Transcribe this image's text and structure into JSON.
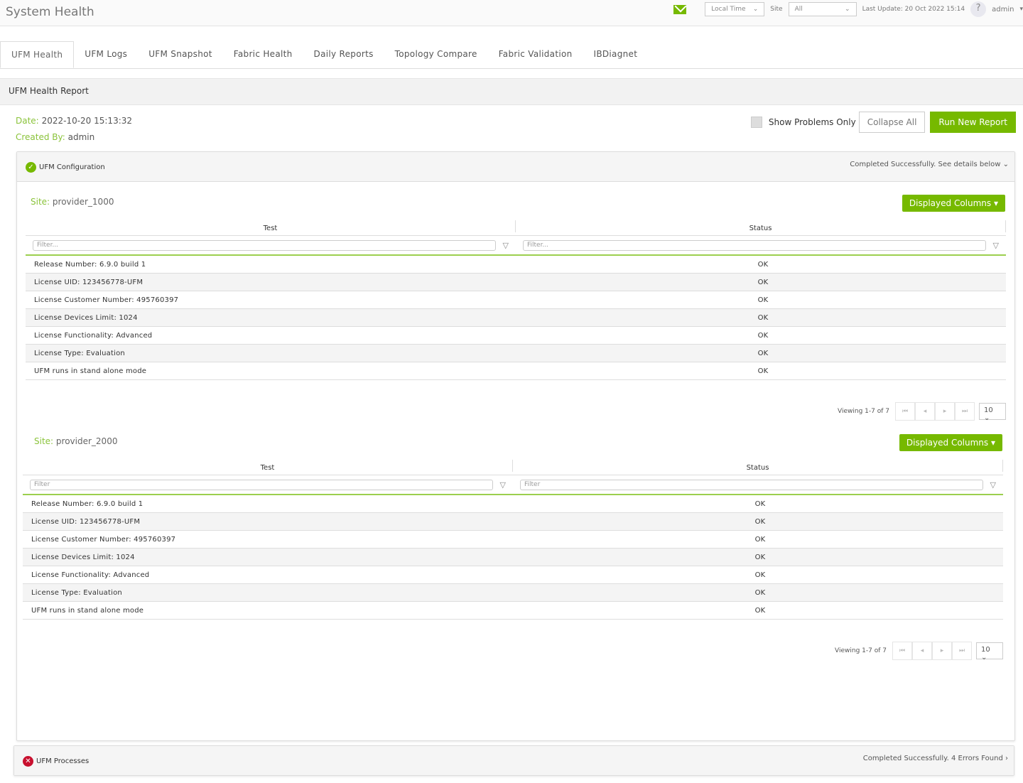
{
  "header": {
    "title": "System Health",
    "time_select": "Local Time",
    "site_label": "Site",
    "site_select": "All",
    "last_update": "Last Update: 20 Oct 2022 15:14",
    "help": "?",
    "user": "admin"
  },
  "tabs": [
    "UFM Health",
    "UFM Logs",
    "UFM Snapshot",
    "Fabric Health",
    "Daily Reports",
    "Topology Compare",
    "Fabric Validation",
    "IBDiagnet"
  ],
  "report": {
    "title": "UFM Health Report",
    "date_label": "Date:",
    "date": "2022-10-20 15:13:32",
    "created_label": "Created By:",
    "created_by": "admin",
    "show_problems": "Show Problems Only",
    "collapse_all": "Collapse All",
    "run_new": "Run New Report"
  },
  "config": {
    "title": "UFM Configuration",
    "status": "Completed Successfully. See details below",
    "sites": [
      {
        "label": "Site:",
        "name": "provider_1000",
        "columns_button": "Displayed Columns",
        "headers": [
          "Test",
          "Status"
        ],
        "filter_placeholder": "Filter...",
        "rows": [
          [
            "Release Number: 6.9.0 build 1",
            "OK"
          ],
          [
            "License UID: 123456778-UFM",
            "OK"
          ],
          [
            "License Customer Number: 495760397",
            "OK"
          ],
          [
            "License Devices Limit: 1024",
            "OK"
          ],
          [
            "License Functionality: Advanced",
            "OK"
          ],
          [
            "License Type: Evaluation",
            "OK"
          ],
          [
            "UFM runs in stand alone mode",
            "OK"
          ]
        ],
        "viewing": "Viewing 1-7 of 7",
        "page_size": "10"
      },
      {
        "label": "Site:",
        "name": "provider_2000",
        "columns_button": "Displayed Columns",
        "headers": [
          "Test",
          "Status"
        ],
        "filter_placeholder": "Filter",
        "rows": [
          [
            "Release Number: 6.9.0 build 1",
            "OK"
          ],
          [
            "License UID: 123456778-UFM",
            "OK"
          ],
          [
            "License Customer Number: 495760397",
            "OK"
          ],
          [
            "License Devices Limit: 1024",
            "OK"
          ],
          [
            "License Functionality: Advanced",
            "OK"
          ],
          [
            "License Type: Evaluation",
            "OK"
          ],
          [
            "UFM runs in stand alone mode",
            "OK"
          ]
        ],
        "viewing": "Viewing 1-7 of 7",
        "page_size": "10"
      }
    ]
  },
  "processes": {
    "title": "UFM Processes",
    "status": "Completed Successfully. 4 Errors Found"
  },
  "colors": {
    "accent": "#76b900",
    "error": "#c8102e"
  }
}
